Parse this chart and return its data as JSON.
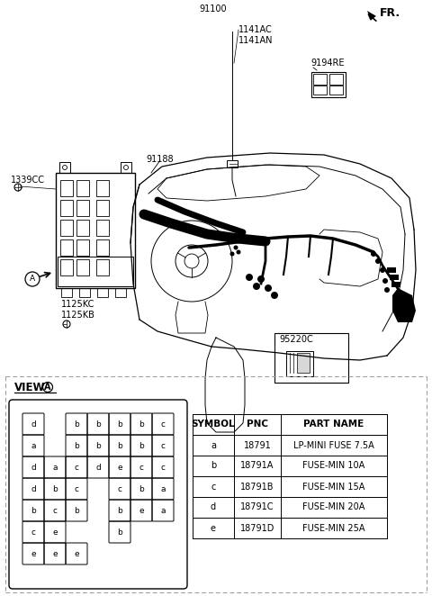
{
  "bg_color": "#ffffff",
  "fuse_table": {
    "headers": [
      "SYMBOL",
      "PNC",
      "PART NAME"
    ],
    "rows": [
      [
        "a",
        "18791",
        "LP-MINI FUSE 7.5A"
      ],
      [
        "b",
        "18791A",
        "FUSE-MIN 10A"
      ],
      [
        "c",
        "18791B",
        "FUSE-MIN 15A"
      ],
      [
        "d",
        "18791C",
        "FUSE-MIN 20A"
      ],
      [
        "e",
        "18791D",
        "FUSE-MIN 25A"
      ]
    ]
  },
  "fuse_layout": [
    [
      0,
      0,
      "d"
    ],
    [
      2,
      0,
      "b"
    ],
    [
      3,
      0,
      "b"
    ],
    [
      4,
      0,
      "b"
    ],
    [
      5,
      0,
      "b"
    ],
    [
      6,
      0,
      "c"
    ],
    [
      0,
      1,
      "a"
    ],
    [
      2,
      1,
      "b"
    ],
    [
      3,
      1,
      "b"
    ],
    [
      4,
      1,
      "b"
    ],
    [
      5,
      1,
      "b"
    ],
    [
      6,
      1,
      "c"
    ],
    [
      0,
      2,
      "d"
    ],
    [
      1,
      2,
      "a"
    ],
    [
      2,
      2,
      "c"
    ],
    [
      3,
      2,
      "d"
    ],
    [
      4,
      2,
      "e"
    ],
    [
      5,
      2,
      "c"
    ],
    [
      6,
      2,
      "c"
    ],
    [
      0,
      3,
      "d"
    ],
    [
      1,
      3,
      "b"
    ],
    [
      2,
      3,
      "c"
    ],
    [
      4,
      3,
      "c"
    ],
    [
      5,
      3,
      "b"
    ],
    [
      6,
      3,
      "a"
    ],
    [
      0,
      4,
      "b"
    ],
    [
      1,
      4,
      "c"
    ],
    [
      2,
      4,
      "b"
    ],
    [
      4,
      4,
      "b"
    ],
    [
      5,
      4,
      "e"
    ],
    [
      6,
      4,
      "a"
    ],
    [
      0,
      5,
      "c"
    ],
    [
      1,
      5,
      "e"
    ],
    [
      4,
      5,
      "b"
    ],
    [
      0,
      6,
      "e"
    ],
    [
      1,
      6,
      "e"
    ],
    [
      2,
      6,
      "e"
    ]
  ]
}
